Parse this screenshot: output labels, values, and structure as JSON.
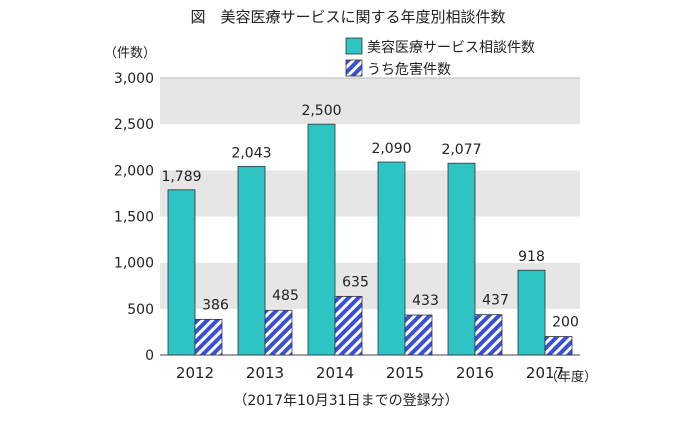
{
  "chart_data": {
    "type": "bar",
    "title": "図　美容医療サービスに関する年度別相談件数",
    "ylabel": "（件数）",
    "xlabel": "（年度）",
    "note": "（2017年10月31日までの登録分）",
    "categories": [
      "2012",
      "2013",
      "2014",
      "2015",
      "2016",
      "2017"
    ],
    "ylim": [
      0,
      3000
    ],
    "yticks": [
      0,
      500,
      1000,
      1500,
      2000,
      2500,
      3000
    ],
    "ytick_labels": [
      "0",
      "500",
      "1,000",
      "1,500",
      "2,000",
      "2,500",
      "3,000"
    ],
    "grid": "horizontal bands",
    "legend_position": "top-right",
    "series": [
      {
        "name": "美容医療サービス相談件数",
        "color": "#2ec4c4",
        "pattern": "solid",
        "values": [
          1789,
          2043,
          2500,
          2090,
          2077,
          918
        ],
        "value_labels": [
          "1,789",
          "2,043",
          "2,500",
          "2,090",
          "2,077",
          "918"
        ]
      },
      {
        "name": "うち危害件数",
        "color": "#3a4fd8",
        "pattern": "diagonal-hatch",
        "values": [
          386,
          485,
          635,
          433,
          437,
          200
        ],
        "value_labels": [
          "386",
          "485",
          "635",
          "433",
          "437",
          "200"
        ]
      }
    ]
  }
}
